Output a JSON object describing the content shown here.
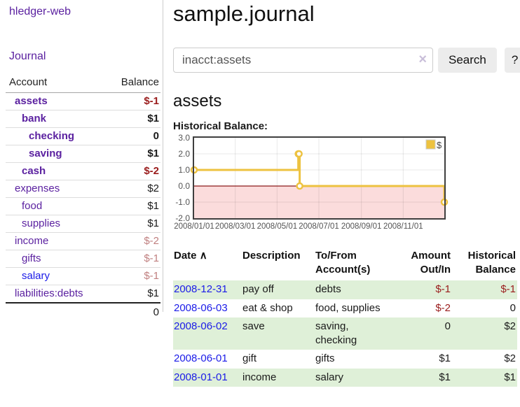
{
  "app": {
    "brand": "hledger-web",
    "nav_journal": "Journal"
  },
  "sidebar": {
    "accounts_table": {
      "headers": {
        "account": "Account",
        "balance": "Balance"
      },
      "rows": [
        {
          "name": "assets",
          "indent": 1,
          "balance": "$-1",
          "bold": true,
          "balance_color": "negative"
        },
        {
          "name": "bank",
          "indent": 2,
          "balance": "$1",
          "bold": true,
          "balance_color": "normal"
        },
        {
          "name": "checking",
          "indent": 3,
          "balance": "0",
          "bold": true,
          "balance_color": "normal"
        },
        {
          "name": "saving",
          "indent": 3,
          "balance": "$1",
          "bold": true,
          "balance_color": "normal"
        },
        {
          "name": "cash",
          "indent": 2,
          "balance": "$-2",
          "bold": true,
          "balance_color": "negative"
        },
        {
          "name": "expenses",
          "indent": 1,
          "balance": "$2",
          "bold": false,
          "balance_color": "normal"
        },
        {
          "name": "food",
          "indent": 2,
          "balance": "$1",
          "bold": false,
          "balance_color": "normal"
        },
        {
          "name": "supplies",
          "indent": 2,
          "balance": "$1",
          "bold": false,
          "balance_color": "normal"
        },
        {
          "name": "income",
          "indent": 1,
          "balance": "$-2",
          "bold": false,
          "balance_color": "negative-faded"
        },
        {
          "name": "gifts",
          "indent": 2,
          "balance": "$-1",
          "bold": false,
          "balance_color": "negative-faded"
        },
        {
          "name": "salary",
          "indent": 2,
          "balance": "$-1",
          "bold": false,
          "balance_color": "negative-faded",
          "link_color": "blue"
        },
        {
          "name": "liabilities:debts",
          "indent": 1,
          "balance": "$1",
          "bold": false,
          "balance_color": "normal"
        }
      ],
      "total": "0"
    }
  },
  "header": {
    "title": "sample.journal"
  },
  "search": {
    "query": "inacct:assets",
    "clear_icon": "×",
    "button": "Search",
    "help_button": "?"
  },
  "account_page": {
    "heading": "assets",
    "chart_label": "Historical Balance:"
  },
  "chart_data": {
    "type": "line",
    "title": "Historical Balance:",
    "step": true,
    "series": [
      {
        "name": "$",
        "color": "#edc240",
        "points": [
          [
            "2008-01-01",
            1
          ],
          [
            "2008-06-01",
            2
          ],
          [
            "2008-06-02",
            2
          ],
          [
            "2008-06-03",
            0
          ],
          [
            "2008-12-31",
            -1
          ]
        ]
      }
    ],
    "xlim": [
      "2008-01-01",
      "2008-12-31"
    ],
    "ylim": [
      -2,
      3
    ],
    "x_tick_dates": [
      "2008-01-01",
      "2008-03-01",
      "2008-05-01",
      "2008-07-01",
      "2008-09-01",
      "2008-11-01"
    ],
    "x_tick_labels": [
      "2008/01/01",
      "2008/03/01",
      "2008/05/01",
      "2008/07/01",
      "2008/09/01",
      "2008/11/01"
    ],
    "y_tick_values": [
      3,
      2,
      1,
      0,
      -1,
      -2
    ],
    "y_tick_labels": [
      "3.0",
      "2.0",
      "1.0",
      "0.0",
      "-1.0",
      "-2.0"
    ],
    "legend": {
      "label": "$",
      "position": "top-right"
    },
    "grid": true,
    "negative_region": {
      "from": 0,
      "to": -2,
      "fill": "#fbdcdc",
      "zero_line_color": "#8b1a1a"
    },
    "colors": {
      "plot_border": "#3f3f3f",
      "gridline": "rgba(0,0,0,0.09)",
      "tick_text": "#545454",
      "marker_fill": "#ffffff"
    }
  },
  "register_table": {
    "columns": {
      "date": "Date",
      "sort_indicator": "∧",
      "description": "Description",
      "tofrom": "To/From Account(s)",
      "amount": "Amount Out/In",
      "balance": "Historical Balance"
    },
    "rows": [
      {
        "date": "2008-12-31",
        "description": "pay off",
        "accounts_lines": [
          "debts"
        ],
        "amount": "$-1",
        "amount_negative": true,
        "balance": "$-1",
        "balance_negative": true
      },
      {
        "date": "2008-06-03",
        "description": "eat & shop",
        "accounts_lines": [
          "food, supplies"
        ],
        "amount": "$-2",
        "amount_negative": true,
        "balance": "0",
        "balance_negative": false
      },
      {
        "date": "2008-06-02",
        "description": "save",
        "accounts_lines": [
          "saving,",
          "checking"
        ],
        "amount": "0",
        "amount_negative": false,
        "balance": "$2",
        "balance_negative": false
      },
      {
        "date": "2008-06-01",
        "description": "gift",
        "accounts_lines": [
          "gifts"
        ],
        "amount": "$1",
        "amount_negative": false,
        "balance": "$2",
        "balance_negative": false
      },
      {
        "date": "2008-01-01",
        "description": "income",
        "accounts_lines": [
          "salary"
        ],
        "amount": "$1",
        "amount_negative": false,
        "balance": "$1",
        "balance_negative": false
      }
    ]
  },
  "colors": {
    "link_purple": "#5b21a0",
    "link_blue": "#1b1be8",
    "negative_red": "#9a1c1c",
    "negative_faded": "#c08080",
    "stripe_green": "#dff0d8",
    "button_bg": "#ececec",
    "sidebar_border": "#cccccc"
  }
}
